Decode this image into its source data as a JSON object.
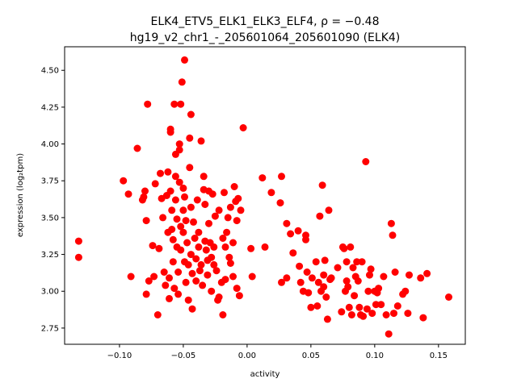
{
  "chart_data": {
    "type": "scatter",
    "title_line1": "ELK4_ETV5_ELK1_ELK3_ELF4, ρ = −0.48",
    "title_line2": "hg19_v2_chr1_-_205601064_205601090 (ELK4)",
    "xlabel": "activity",
    "ylabel": "expression (log₂tpm)",
    "xlim": [
      -0.143,
      0.171
    ],
    "ylim": [
      2.64,
      4.66
    ],
    "xticks": [
      -0.1,
      -0.05,
      0.0,
      0.05,
      0.1,
      0.15
    ],
    "xtick_labels": [
      "−0.10",
      "−0.05",
      "0.00",
      "0.05",
      "0.10",
      "0.15"
    ],
    "yticks": [
      2.75,
      3.0,
      3.25,
      3.5,
      3.75,
      4.0,
      4.25,
      4.5
    ],
    "ytick_labels": [
      "2.75",
      "3.00",
      "3.25",
      "3.50",
      "3.75",
      "4.00",
      "4.25",
      "4.50"
    ],
    "grid": false,
    "marker_color": "#ff0000",
    "series": [
      {
        "points": [
          [
            -0.132,
            3.34
          ],
          [
            -0.132,
            3.23
          ],
          [
            -0.097,
            3.75
          ],
          [
            -0.091,
            3.1
          ],
          [
            -0.093,
            3.66
          ],
          [
            -0.086,
            3.97
          ],
          [
            -0.082,
            3.62
          ],
          [
            -0.081,
            3.64
          ],
          [
            -0.08,
            3.68
          ],
          [
            -0.079,
            3.48
          ],
          [
            -0.078,
            4.27
          ],
          [
            -0.079,
            2.98
          ],
          [
            -0.077,
            3.07
          ],
          [
            -0.074,
            3.31
          ],
          [
            -0.072,
            3.73
          ],
          [
            -0.073,
            3.1
          ],
          [
            -0.07,
            2.84
          ],
          [
            -0.069,
            3.29
          ],
          [
            -0.068,
            3.8
          ],
          [
            -0.067,
            3.63
          ],
          [
            -0.066,
            3.5
          ],
          [
            -0.065,
            3.13
          ],
          [
            -0.064,
            3.04
          ],
          [
            -0.063,
            3.65
          ],
          [
            -0.062,
            3.81
          ],
          [
            -0.062,
            3.4
          ],
          [
            -0.061,
            3.09
          ],
          [
            -0.061,
            2.95
          ],
          [
            -0.06,
            4.1
          ],
          [
            -0.06,
            4.08
          ],
          [
            -0.06,
            3.68
          ],
          [
            -0.059,
            3.55
          ],
          [
            -0.059,
            3.42
          ],
          [
            -0.058,
            3.35
          ],
          [
            -0.058,
            3.2
          ],
          [
            -0.057,
            3.02
          ],
          [
            -0.057,
            4.27
          ],
          [
            -0.056,
            3.93
          ],
          [
            -0.056,
            3.78
          ],
          [
            -0.056,
            3.62
          ],
          [
            -0.055,
            3.49
          ],
          [
            -0.055,
            3.3
          ],
          [
            -0.054,
            3.13
          ],
          [
            -0.054,
            2.98
          ],
          [
            -0.053,
            4.0
          ],
          [
            -0.053,
            3.96
          ],
          [
            -0.053,
            3.74
          ],
          [
            -0.052,
            3.44
          ],
          [
            -0.052,
            3.28
          ],
          [
            -0.052,
            4.27
          ],
          [
            -0.051,
            4.42
          ],
          [
            -0.05,
            3.7
          ],
          [
            -0.05,
            3.55
          ],
          [
            -0.05,
            3.4
          ],
          [
            -0.049,
            4.57
          ],
          [
            -0.049,
            3.64
          ],
          [
            -0.049,
            3.2
          ],
          [
            -0.048,
            3.06
          ],
          [
            -0.048,
            3.48
          ],
          [
            -0.047,
            3.33
          ],
          [
            -0.046,
            3.18
          ],
          [
            -0.046,
            2.94
          ],
          [
            -0.045,
            3.84
          ],
          [
            -0.045,
            4.04
          ],
          [
            -0.044,
            4.2
          ],
          [
            -0.044,
            3.57
          ],
          [
            -0.044,
            3.25
          ],
          [
            -0.043,
            3.12
          ],
          [
            -0.043,
            2.88
          ],
          [
            -0.042,
            3.47
          ],
          [
            -0.041,
            3.36
          ],
          [
            -0.04,
            3.22
          ],
          [
            -0.04,
            3.07
          ],
          [
            -0.039,
            3.62
          ],
          [
            -0.038,
            3.4
          ],
          [
            -0.038,
            3.3
          ],
          [
            -0.037,
            3.14
          ],
          [
            -0.036,
            4.02
          ],
          [
            -0.036,
            3.18
          ],
          [
            -0.035,
            3.04
          ],
          [
            -0.034,
            3.78
          ],
          [
            -0.034,
            3.69
          ],
          [
            -0.033,
            3.59
          ],
          [
            -0.033,
            3.34
          ],
          [
            -0.032,
            3.28
          ],
          [
            -0.031,
            3.21
          ],
          [
            -0.031,
            3.11
          ],
          [
            -0.03,
            3.68
          ],
          [
            -0.03,
            3.46
          ],
          [
            -0.029,
            3.33
          ],
          [
            -0.028,
            3.23
          ],
          [
            -0.028,
            3.0
          ],
          [
            -0.027,
            3.66
          ],
          [
            -0.026,
            3.3
          ],
          [
            -0.026,
            3.18
          ],
          [
            -0.025,
            3.51
          ],
          [
            -0.024,
            3.14
          ],
          [
            -0.023,
            2.94
          ],
          [
            -0.022,
            3.55
          ],
          [
            -0.022,
            2.96
          ],
          [
            -0.02,
            3.06
          ],
          [
            -0.019,
            3.36
          ],
          [
            -0.019,
            2.84
          ],
          [
            -0.018,
            3.67
          ],
          [
            -0.017,
            3.3
          ],
          [
            -0.017,
            3.08
          ],
          [
            -0.016,
            3.4
          ],
          [
            -0.015,
            3.5
          ],
          [
            -0.014,
            3.23
          ],
          [
            -0.013,
            3.19
          ],
          [
            -0.013,
            3.57
          ],
          [
            -0.011,
            3.33
          ],
          [
            -0.011,
            3.1
          ],
          [
            -0.01,
            3.71
          ],
          [
            -0.009,
            3.61
          ],
          [
            -0.008,
            3.48
          ],
          [
            -0.008,
            3.02
          ],
          [
            -0.007,
            3.63
          ],
          [
            -0.006,
            2.97
          ],
          [
            -0.005,
            3.55
          ],
          [
            -0.003,
            4.11
          ],
          [
            0.003,
            3.29
          ],
          [
            0.004,
            3.1
          ],
          [
            0.012,
            3.77
          ],
          [
            0.014,
            3.3
          ],
          [
            0.019,
            3.67
          ],
          [
            0.026,
            3.6
          ],
          [
            0.027,
            3.78
          ],
          [
            0.027,
            3.06
          ],
          [
            0.031,
            3.09
          ],
          [
            0.031,
            3.46
          ],
          [
            0.034,
            3.39
          ],
          [
            0.036,
            3.26
          ],
          [
            0.04,
            3.41
          ],
          [
            0.041,
            3.17
          ],
          [
            0.042,
            3.06
          ],
          [
            0.044,
            3.0
          ],
          [
            0.046,
            3.35
          ],
          [
            0.046,
            3.38
          ],
          [
            0.047,
            3.13
          ],
          [
            0.048,
            2.99
          ],
          [
            0.05,
            2.89
          ],
          [
            0.051,
            3.09
          ],
          [
            0.054,
            3.2
          ],
          [
            0.055,
            2.9
          ],
          [
            0.056,
            3.06
          ],
          [
            0.057,
            3.51
          ],
          [
            0.058,
            3.0
          ],
          [
            0.059,
            3.72
          ],
          [
            0.06,
            3.11
          ],
          [
            0.06,
            3.03
          ],
          [
            0.061,
            3.21
          ],
          [
            0.062,
            2.96
          ],
          [
            0.063,
            2.81
          ],
          [
            0.064,
            3.55
          ],
          [
            0.065,
            3.08
          ],
          [
            0.066,
            3.09
          ],
          [
            0.071,
            3.16
          ],
          [
            0.074,
            2.86
          ],
          [
            0.075,
            3.3
          ],
          [
            0.076,
            3.29
          ],
          [
            0.077,
            3.0
          ],
          [
            0.078,
            3.07
          ],
          [
            0.078,
            3.2
          ],
          [
            0.079,
            3.03
          ],
          [
            0.08,
            2.89
          ],
          [
            0.081,
            3.3
          ],
          [
            0.082,
            2.84
          ],
          [
            0.083,
            3.16
          ],
          [
            0.084,
            2.97
          ],
          [
            0.085,
            3.1
          ],
          [
            0.086,
            3.2
          ],
          [
            0.087,
            3.07
          ],
          [
            0.088,
            2.89
          ],
          [
            0.089,
            2.84
          ],
          [
            0.09,
            3.2
          ],
          [
            0.091,
            2.83
          ],
          [
            0.093,
            3.88
          ],
          [
            0.094,
            2.88
          ],
          [
            0.095,
            3.0
          ],
          [
            0.096,
            3.11
          ],
          [
            0.097,
            3.15
          ],
          [
            0.098,
            2.85
          ],
          [
            0.1,
            3.0
          ],
          [
            0.101,
            2.91
          ],
          [
            0.102,
            2.99
          ],
          [
            0.103,
            3.02
          ],
          [
            0.105,
            2.91
          ],
          [
            0.107,
            3.1
          ],
          [
            0.109,
            2.84
          ],
          [
            0.111,
            2.71
          ],
          [
            0.113,
            3.46
          ],
          [
            0.114,
            3.38
          ],
          [
            0.115,
            2.85
          ],
          [
            0.116,
            3.13
          ],
          [
            0.118,
            2.9
          ],
          [
            0.122,
            2.98
          ],
          [
            0.124,
            3.0
          ],
          [
            0.126,
            2.85
          ],
          [
            0.127,
            3.11
          ],
          [
            0.136,
            3.09
          ],
          [
            0.138,
            2.82
          ],
          [
            0.141,
            3.12
          ],
          [
            0.158,
            2.96
          ]
        ]
      }
    ]
  }
}
